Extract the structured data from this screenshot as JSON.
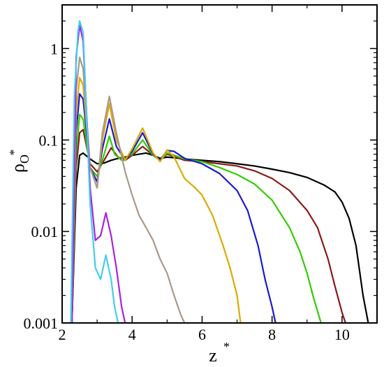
{
  "chart_data": {
    "type": "line",
    "title": "",
    "xlabel": "z",
    "xlabel_sup": "*",
    "ylabel": "ρ",
    "ylabel_sub": "O",
    "ylabel_sup": "*",
    "xlim": [
      2,
      11
    ],
    "ylim": [
      0.001,
      3
    ],
    "yscale": "log",
    "grid": false,
    "legend": "none",
    "x_ticks": [
      {
        "value": 2,
        "label": "2"
      },
      {
        "value": 4,
        "label": "4"
      },
      {
        "value": 6,
        "label": "6"
      },
      {
        "value": 8,
        "label": "8"
      },
      {
        "value": 10,
        "label": "10"
      }
    ],
    "y_ticks": [
      {
        "value": 0.001,
        "label": "0.001"
      },
      {
        "value": 0.01,
        "label": "0.01"
      },
      {
        "value": 0.1,
        "label": "0.1"
      },
      {
        "value": 1,
        "label": "1"
      }
    ],
    "series": [
      {
        "color": "#000000",
        "x": [
          2.28,
          2.4,
          2.5,
          2.6,
          2.8,
          3.0,
          3.2,
          3.4,
          3.6,
          3.8,
          4.0,
          4.2,
          4.4,
          4.6,
          4.8,
          5.0,
          5.2,
          5.5,
          6.0,
          6.5,
          7.0,
          7.5,
          8.0,
          8.5,
          9.0,
          9.5,
          9.8,
          10.0,
          10.2,
          10.4,
          10.6,
          10.75
        ],
        "y": [
          0.001,
          0.03,
          0.068,
          0.072,
          0.062,
          0.055,
          0.056,
          0.06,
          0.063,
          0.065,
          0.068,
          0.07,
          0.072,
          0.068,
          0.063,
          0.065,
          0.064,
          0.062,
          0.06,
          0.058,
          0.055,
          0.052,
          0.048,
          0.044,
          0.039,
          0.032,
          0.027,
          0.021,
          0.014,
          0.007,
          0.002,
          0.001
        ]
      },
      {
        "color": "#8b1a1a",
        "x": [
          2.28,
          2.4,
          2.5,
          2.6,
          2.8,
          3.0,
          3.2,
          3.4,
          3.6,
          3.8,
          4.0,
          4.3,
          4.6,
          4.8,
          5.0,
          5.2,
          5.5,
          6.0,
          6.5,
          7.0,
          7.5,
          8.0,
          8.5,
          9.0,
          9.3,
          9.6,
          9.8,
          10.0,
          10.1
        ],
        "y": [
          0.001,
          0.05,
          0.12,
          0.13,
          0.055,
          0.045,
          0.06,
          0.082,
          0.065,
          0.06,
          0.068,
          0.085,
          0.068,
          0.06,
          0.07,
          0.066,
          0.06,
          0.058,
          0.055,
          0.052,
          0.046,
          0.038,
          0.028,
          0.017,
          0.011,
          0.005,
          0.0025,
          0.0013,
          0.001
        ]
      },
      {
        "color": "#33cc00",
        "x": [
          2.28,
          2.4,
          2.5,
          2.6,
          2.8,
          3.0,
          3.2,
          3.35,
          3.5,
          3.7,
          4.0,
          4.3,
          4.6,
          4.8,
          5.0,
          5.2,
          5.5,
          6.0,
          6.5,
          7.0,
          7.5,
          8.0,
          8.5,
          8.8,
          9.0,
          9.2,
          9.4
        ],
        "y": [
          0.001,
          0.07,
          0.19,
          0.17,
          0.05,
          0.04,
          0.07,
          0.11,
          0.07,
          0.06,
          0.07,
          0.1,
          0.068,
          0.06,
          0.072,
          0.068,
          0.062,
          0.058,
          0.05,
          0.042,
          0.033,
          0.022,
          0.011,
          0.006,
          0.0035,
          0.0018,
          0.001
        ]
      },
      {
        "color": "#1a1acc",
        "x": [
          2.28,
          2.4,
          2.5,
          2.6,
          2.8,
          3.0,
          3.15,
          3.35,
          3.55,
          3.8,
          4.0,
          4.3,
          4.6,
          4.8,
          5.0,
          5.2,
          5.5,
          6.0,
          6.5,
          7.0,
          7.3,
          7.6,
          7.8,
          8.0,
          8.1
        ],
        "y": [
          0.001,
          0.12,
          0.32,
          0.28,
          0.05,
          0.035,
          0.08,
          0.17,
          0.085,
          0.06,
          0.075,
          0.12,
          0.07,
          0.06,
          0.077,
          0.075,
          0.063,
          0.055,
          0.043,
          0.028,
          0.017,
          0.007,
          0.003,
          0.0015,
          0.001
        ]
      },
      {
        "color": "#ddaa00",
        "x": [
          2.28,
          2.4,
          2.5,
          2.6,
          2.8,
          3.0,
          3.15,
          3.35,
          3.55,
          3.8,
          4.0,
          4.3,
          4.6,
          4.8,
          5.0,
          5.2,
          5.5,
          5.8,
          6.0,
          6.3,
          6.6,
          6.8,
          7.0,
          7.1
        ],
        "y": [
          0.001,
          0.2,
          0.48,
          0.4,
          0.05,
          0.03,
          0.1,
          0.25,
          0.1,
          0.06,
          0.08,
          0.135,
          0.072,
          0.058,
          0.078,
          0.065,
          0.038,
          0.03,
          0.025,
          0.015,
          0.007,
          0.004,
          0.002,
          0.001
        ]
      },
      {
        "color": "#aa9988",
        "x": [
          2.28,
          2.4,
          2.5,
          2.6,
          2.8,
          3.0,
          3.15,
          3.35,
          3.55,
          3.8,
          4.0,
          4.2,
          4.4,
          4.6,
          4.8,
          5.0,
          5.2,
          5.4,
          5.5
        ],
        "y": [
          0.001,
          0.35,
          0.8,
          0.6,
          0.05,
          0.03,
          0.12,
          0.3,
          0.12,
          0.045,
          0.025,
          0.015,
          0.011,
          0.008,
          0.005,
          0.0035,
          0.002,
          0.0012,
          0.001
        ]
      },
      {
        "color": "#aa22dd",
        "x": [
          2.28,
          2.4,
          2.5,
          2.6,
          2.8,
          2.95,
          3.1,
          3.25,
          3.4,
          3.55,
          3.7,
          3.8
        ],
        "y": [
          0.001,
          0.8,
          1.8,
          1.2,
          0.03,
          0.008,
          0.009,
          0.016,
          0.009,
          0.004,
          0.0015,
          0.001
        ]
      },
      {
        "color": "#44ccee",
        "x": [
          2.25,
          2.35,
          2.45,
          2.5,
          2.6,
          2.8,
          2.95,
          3.1,
          3.25,
          3.4,
          3.5,
          3.6
        ],
        "y": [
          0.001,
          0.3,
          1.5,
          2.0,
          1.5,
          0.02,
          0.004,
          0.003,
          0.0055,
          0.003,
          0.0015,
          0.001
        ]
      }
    ]
  }
}
